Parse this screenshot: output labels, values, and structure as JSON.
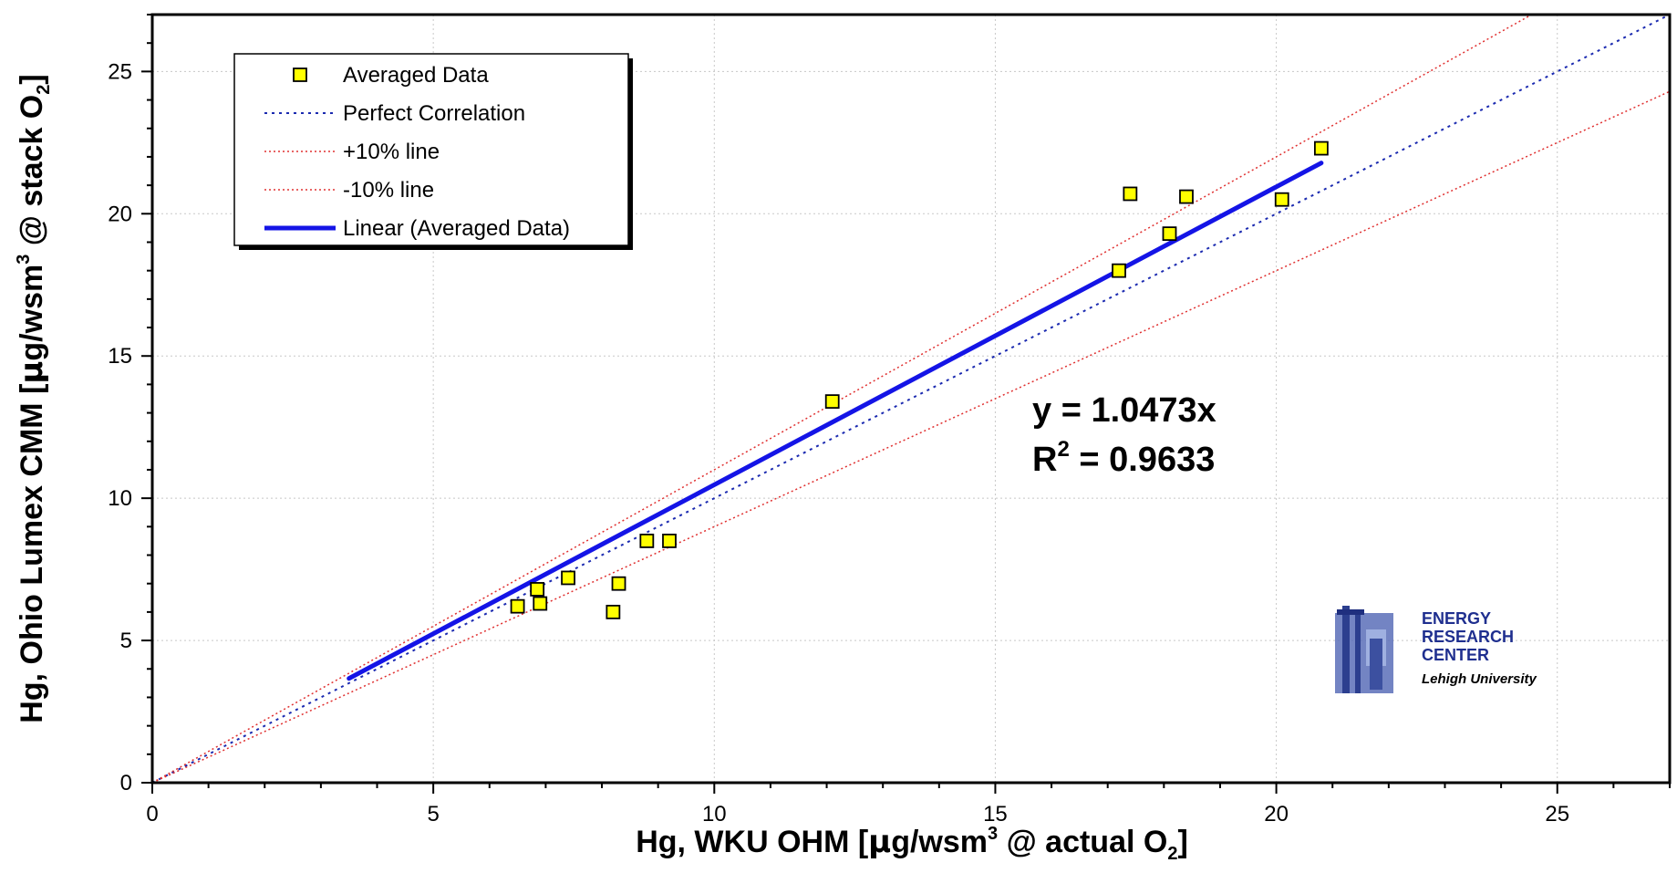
{
  "chart_data": {
    "type": "scatter",
    "xlabel_prefix": "Hg, WKU OHM [",
    "xlabel_mu": "μ",
    "xlabel_mid": "g/wsm",
    "xlabel_sup": "3",
    "xlabel_mid2": " @ actual O",
    "xlabel_sub": "2",
    "xlabel_suffix": "]",
    "ylabel_prefix": "Hg, Ohio Lumex CMM [",
    "ylabel_mu": "μ",
    "ylabel_mid": "g/wsm",
    "ylabel_sup": "3",
    "ylabel_mid2": " @ stack O",
    "ylabel_sub": "2",
    "ylabel_suffix": "]",
    "xlim": [
      0,
      27
    ],
    "ylim": [
      0,
      27
    ],
    "x_ticks": [
      0,
      5,
      10,
      15,
      20,
      25
    ],
    "y_ticks": [
      0,
      5,
      10,
      15,
      20,
      25
    ],
    "minor_tick_step": 1,
    "grid": true,
    "legend_position": "top-left",
    "legend": [
      {
        "label": "Averaged Data",
        "kind": "marker"
      },
      {
        "label": "Perfect Correlation",
        "kind": "dotted-blue"
      },
      {
        "label": "+10% line",
        "kind": "dotted-red"
      },
      {
        "label": "-10% line",
        "kind": "dotted-red"
      },
      {
        "label": "Linear (Averaged Data)",
        "kind": "solid-blue"
      }
    ],
    "series": [
      {
        "name": "Averaged Data",
        "points": [
          {
            "x": 6.5,
            "y": 6.2
          },
          {
            "x": 6.85,
            "y": 6.8
          },
          {
            "x": 6.9,
            "y": 6.3
          },
          {
            "x": 7.4,
            "y": 7.2
          },
          {
            "x": 8.2,
            "y": 6.0
          },
          {
            "x": 8.3,
            "y": 7.0
          },
          {
            "x": 8.8,
            "y": 8.5
          },
          {
            "x": 9.2,
            "y": 8.5
          },
          {
            "x": 12.1,
            "y": 13.4
          },
          {
            "x": 17.2,
            "y": 18.0
          },
          {
            "x": 17.4,
            "y": 20.7
          },
          {
            "x": 18.1,
            "y": 19.3
          },
          {
            "x": 18.4,
            "y": 20.6
          },
          {
            "x": 20.1,
            "y": 20.5
          },
          {
            "x": 20.8,
            "y": 22.3
          }
        ]
      }
    ],
    "perfect_correlation_slope": 1.0,
    "plus10_slope": 1.1,
    "minus10_slope": 0.9,
    "trendline": {
      "slope": 1.0473,
      "x_range": [
        3.5,
        20.8
      ]
    },
    "equation_text": "y = 1.0473x",
    "r2_prefix": "R",
    "r2_sup": "2",
    "r2_suffix": " = 0.9633",
    "colors": {
      "marker_fill": "#ffff00",
      "marker_stroke": "#000000",
      "perfect": "#1b2ab0",
      "bounds": "#e03030",
      "trend": "#1414e6",
      "grid": "#c8c8c8"
    }
  },
  "logo": {
    "line1": "ENERGY",
    "line2": "RESEARCH",
    "line3": "CENTER",
    "line4": "Lehigh University"
  }
}
